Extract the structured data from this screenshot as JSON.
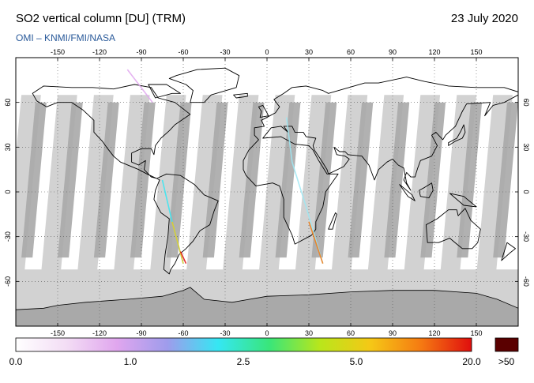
{
  "header": {
    "title": "SO2 vertical column [DU] (TRM)",
    "date": "23 July 2020",
    "credit": "OMI  –  KNMI/FMI/NASA"
  },
  "map": {
    "projection": "equirectangular",
    "lon_range": [
      -180,
      180
    ],
    "lat_range": [
      -90,
      90
    ],
    "lon_ticks": [
      "-150",
      "-120",
      "-90",
      "-60",
      "-30",
      "0",
      "30",
      "60",
      "90",
      "120",
      "150"
    ],
    "lat_ticks_left": [
      "60",
      "30",
      "0",
      "-30",
      "-60"
    ],
    "lat_ticks_right": [
      "60",
      "30",
      "0",
      "-30",
      "-60"
    ],
    "grid": true,
    "colors": {
      "no_data": "#d2d2d2",
      "night": "#a9a9a9",
      "background": "#ffffff",
      "coastline": "#000000"
    }
  },
  "colorbar": {
    "labels": [
      "0.0",
      "1.0",
      "2.5",
      "5.0",
      "20.0"
    ],
    "overflow_label": ">50",
    "overflow_color": "#5a0000",
    "colors": [
      "#ffffff",
      "#f3ddf5",
      "#e0a6ee",
      "#9e9cec",
      "#35e7f3",
      "#39e67a",
      "#b9e61b",
      "#f5c816",
      "#f57a12",
      "#e00e0e"
    ]
  }
}
